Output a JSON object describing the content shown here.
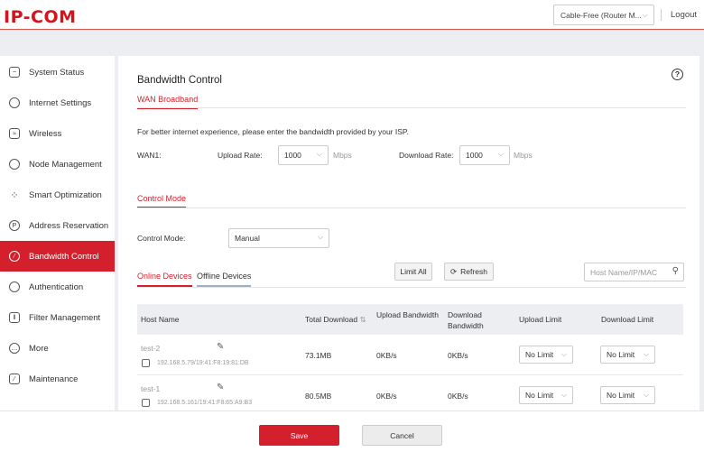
{
  "header": {
    "logo": "IP-COM",
    "router_select": "Cable-Free (Router M...",
    "logout": "Logout"
  },
  "sidebar": {
    "items": [
      {
        "label": "System Status",
        "icon": "monitor-chart-icon"
      },
      {
        "label": "Internet Settings",
        "icon": "globe-icon"
      },
      {
        "label": "Wireless",
        "icon": "wifi-screen-icon"
      },
      {
        "label": "Node Management",
        "icon": "user-circle-icon"
      },
      {
        "label": "Smart Optimization",
        "icon": "optimization-icon"
      },
      {
        "label": "Address Reservation",
        "icon": "reservation-icon"
      },
      {
        "label": "Bandwidth Control",
        "icon": "speedometer-icon",
        "active": true
      },
      {
        "label": "Authentication",
        "icon": "shield-icon"
      },
      {
        "label": "Filter Management",
        "icon": "filter-icon"
      },
      {
        "label": "More",
        "icon": "more-icon"
      },
      {
        "label": "Maintenance",
        "icon": "maintenance-icon"
      }
    ]
  },
  "main": {
    "title": "Bandwidth Control",
    "help_icon": "?",
    "wan_tab": "WAN Broadband",
    "hint": "For better internet experience, please enter the bandwidth provided by your ISP.",
    "wan1_label": "WAN1:",
    "upload_label": "Upload Rate:",
    "upload_value": "1000",
    "upload_unit": "Mbps",
    "download_label": "Download Rate:",
    "download_value": "1000",
    "download_unit": "Mbps",
    "control_tab": "Control Mode",
    "control_mode_label": "Control Mode:",
    "control_mode_value": "Manual",
    "tabs": {
      "online": "Online Devices",
      "offline": "Offline Devices"
    },
    "limit_all": "Limit All",
    "refresh": "Refresh",
    "search_placeholder": "Host Name/IP/MAC",
    "table": {
      "headers": [
        "Host Name",
        "Total Download",
        "Upload Bandwidth",
        "Download Bandwidth",
        "Upload Limit",
        "Download Limit"
      ],
      "rows": [
        {
          "name": "test-2",
          "addr": "192.168.5.79/19:41:F8:19:81:DB",
          "total": "73.1MB",
          "up": "0KB/s",
          "down": "0KB/s",
          "up_limit": "No Limit",
          "down_limit": "No Limit"
        },
        {
          "name": "test-1",
          "addr": "192.168.5.161/19:41:F8:65:A9:B3",
          "total": "80.5MB",
          "up": "0KB/s",
          "down": "0KB/s",
          "up_limit": "No Limit",
          "down_limit": "No Limit"
        }
      ]
    }
  },
  "footer": {
    "save": "Save",
    "cancel": "Cancel"
  },
  "colors": {
    "accent": "#d4202c"
  }
}
